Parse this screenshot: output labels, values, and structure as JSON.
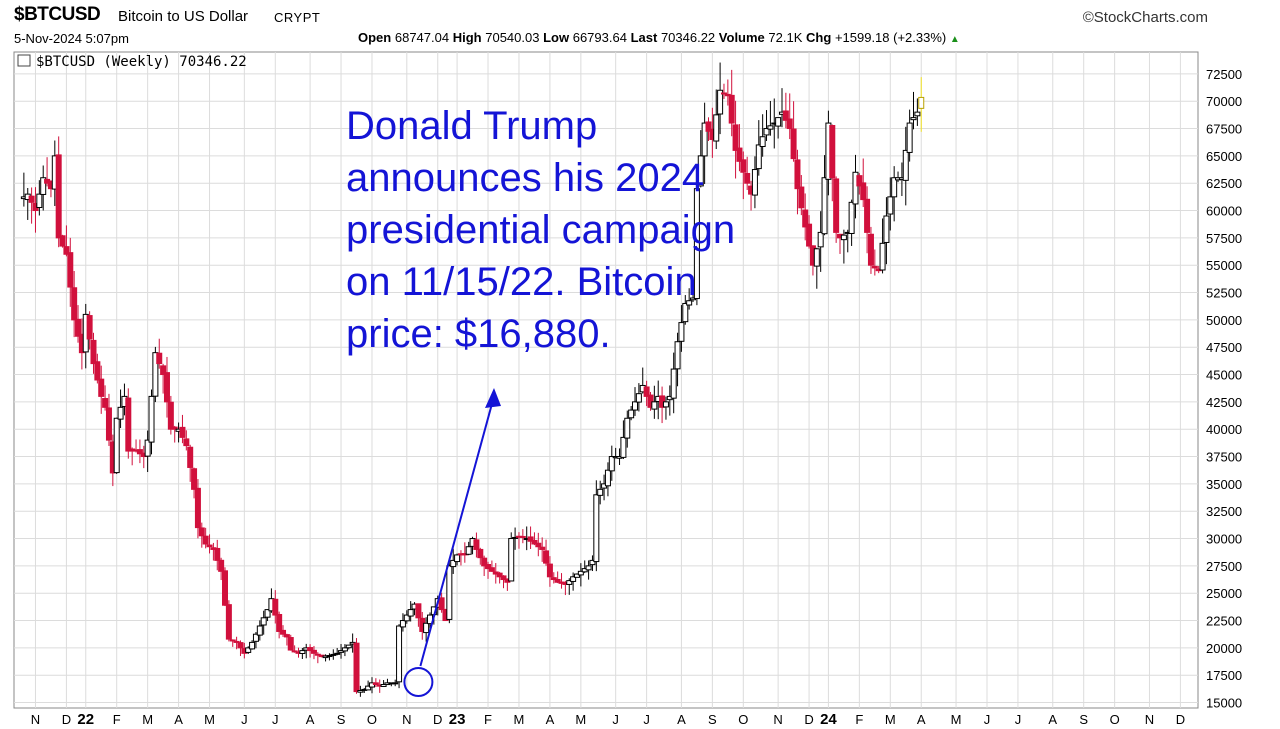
{
  "header": {
    "symbol": "$BTCUSD",
    "description": "Bitcoin to US Dollar",
    "exchange": "CRYPT",
    "brand": "©StockCharts.com",
    "datetime": "5-Nov-2024 5:07pm",
    "quote": {
      "open_label": "Open",
      "open": "68747.04",
      "high_label": "High",
      "high": "70540.03",
      "low_label": "Low",
      "low": "66793.64",
      "last_label": "Last",
      "last": "70346.22",
      "volume_label": "Volume",
      "volume": "72.1K",
      "chg_label": "Chg",
      "chg": "+1599.18 (+2.33%)",
      "chg_arrow": "▲"
    }
  },
  "annotation": {
    "lines": [
      "Donald Trump",
      "announces his 2024",
      "presidential campaign",
      "on 11/15/22. Bitcoin",
      "price: $16,880."
    ],
    "color": "#1414d6"
  },
  "chart_data": {
    "type": "candlestick",
    "title": "$BTCUSD (Weekly) 70346.22",
    "series_label": "$BTCUSD (Weekly) 70346.22",
    "up_color": "#000000",
    "down_color": "#d1103c",
    "last_bar_color": "#f0e020",
    "ylim": [
      14500,
      74500
    ],
    "y_ticks": [
      15000,
      17500,
      20000,
      22500,
      25000,
      27500,
      30000,
      32500,
      35000,
      37500,
      40000,
      42500,
      45000,
      47500,
      50000,
      52500,
      55000,
      57500,
      60000,
      62500,
      65000,
      67500,
      70000,
      72500
    ],
    "x_ticks": [
      {
        "label": "N",
        "bar": 4
      },
      {
        "label": "D",
        "bar": 12
      },
      {
        "label": "22",
        "bar": 17,
        "year": true
      },
      {
        "label": "F",
        "bar": 25
      },
      {
        "label": "M",
        "bar": 33
      },
      {
        "label": "A",
        "bar": 41
      },
      {
        "label": "M",
        "bar": 49
      },
      {
        "label": "J",
        "bar": 58
      },
      {
        "label": "J",
        "bar": 66
      },
      {
        "label": "A",
        "bar": 75
      },
      {
        "label": "S",
        "bar": 83
      },
      {
        "label": "O",
        "bar": 91
      },
      {
        "label": "N",
        "bar": 100
      },
      {
        "label": "D",
        "bar": 108
      },
      {
        "label": "23",
        "bar": 113,
        "year": true
      },
      {
        "label": "F",
        "bar": 121
      },
      {
        "label": "M",
        "bar": 129
      },
      {
        "label": "A",
        "bar": 137
      },
      {
        "label": "M",
        "bar": 145
      },
      {
        "label": "J",
        "bar": 154
      },
      {
        "label": "J",
        "bar": 162
      },
      {
        "label": "A",
        "bar": 171
      },
      {
        "label": "S",
        "bar": 179
      },
      {
        "label": "O",
        "bar": 187
      },
      {
        "label": "N",
        "bar": 196
      },
      {
        "label": "D",
        "bar": 204
      },
      {
        "label": "24",
        "bar": 209,
        "year": true
      },
      {
        "label": "F",
        "bar": 217
      },
      {
        "label": "M",
        "bar": 225
      },
      {
        "label": "A",
        "bar": 233
      },
      {
        "label": "M",
        "bar": 242
      },
      {
        "label": "J",
        "bar": 250
      },
      {
        "label": "J",
        "bar": 258
      },
      {
        "label": "A",
        "bar": 267
      },
      {
        "label": "S",
        "bar": 275
      },
      {
        "label": "O",
        "bar": 283
      },
      {
        "label": "N",
        "bar": 292
      },
      {
        "label": "D",
        "bar": 300
      }
    ],
    "total_bars": 304,
    "highlight": {
      "label": "Trump announcement 11/15/22",
      "bar": 103,
      "price": 16880
    },
    "close_path": [
      [
        0,
        61000
      ],
      [
        2,
        61500
      ],
      [
        4,
        60000
      ],
      [
        6,
        63000
      ],
      [
        8,
        62000
      ],
      [
        9,
        65000
      ],
      [
        10,
        57500
      ],
      [
        12,
        56000
      ],
      [
        14,
        50000
      ],
      [
        16,
        47000
      ],
      [
        17,
        50500
      ],
      [
        19,
        46000
      ],
      [
        21,
        43000
      ],
      [
        22,
        42000
      ],
      [
        24,
        36000
      ],
      [
        25,
        41000
      ],
      [
        27,
        43000
      ],
      [
        28,
        38000
      ],
      [
        30,
        38000
      ],
      [
        32,
        37500
      ],
      [
        33,
        39000
      ],
      [
        34,
        43000
      ],
      [
        35,
        47000
      ],
      [
        37,
        45000
      ],
      [
        39,
        40000
      ],
      [
        41,
        40000
      ],
      [
        43,
        38500
      ],
      [
        45,
        34500
      ],
      [
        46,
        31000
      ],
      [
        48,
        29500
      ],
      [
        50,
        29000
      ],
      [
        52,
        27000
      ],
      [
        54,
        20800
      ],
      [
        56,
        20500
      ],
      [
        58,
        19500
      ],
      [
        60,
        20500
      ],
      [
        62,
        22000
      ],
      [
        64,
        23500
      ],
      [
        65,
        24500
      ],
      [
        67,
        21500
      ],
      [
        69,
        21000
      ],
      [
        70,
        19800
      ],
      [
        72,
        19500
      ],
      [
        74,
        20000
      ],
      [
        76,
        19500
      ],
      [
        78,
        19200
      ],
      [
        80,
        19300
      ],
      [
        82,
        19500
      ],
      [
        84,
        20000
      ],
      [
        86,
        20500
      ],
      [
        87,
        16000
      ],
      [
        89,
        16200
      ],
      [
        91,
        16800
      ],
      [
        93,
        16500
      ],
      [
        95,
        16800
      ],
      [
        97,
        16800
      ],
      [
        98,
        22000
      ],
      [
        100,
        23000
      ],
      [
        102,
        24000
      ],
      [
        104,
        21500
      ],
      [
        106,
        23000
      ],
      [
        108,
        24500
      ],
      [
        110,
        22500
      ],
      [
        111,
        27500
      ],
      [
        113,
        28500
      ],
      [
        115,
        28500
      ],
      [
        117,
        30000
      ],
      [
        118,
        29000
      ],
      [
        120,
        27500
      ],
      [
        122,
        27000
      ],
      [
        124,
        26500
      ],
      [
        126,
        26000
      ],
      [
        127,
        30000
      ],
      [
        129,
        30200
      ],
      [
        131,
        30000
      ],
      [
        133,
        29500
      ],
      [
        135,
        29000
      ],
      [
        137,
        26500
      ],
      [
        139,
        26000
      ],
      [
        141,
        25800
      ],
      [
        143,
        26500
      ],
      [
        145,
        27000
      ],
      [
        147,
        27500
      ],
      [
        148,
        28000
      ],
      [
        149,
        34000
      ],
      [
        151,
        35000
      ],
      [
        153,
        37500
      ],
      [
        155,
        37500
      ],
      [
        157,
        41000
      ],
      [
        159,
        42500
      ],
      [
        161,
        44000
      ],
      [
        163,
        42000
      ],
      [
        165,
        43000
      ],
      [
        166,
        42000
      ],
      [
        168,
        43000
      ],
      [
        170,
        48000
      ],
      [
        172,
        51500
      ],
      [
        174,
        52000
      ],
      [
        175,
        62000
      ],
      [
        177,
        68000
      ],
      [
        179,
        66500
      ],
      [
        181,
        71000
      ],
      [
        183,
        70500
      ],
      [
        185,
        65500
      ],
      [
        187,
        63500
      ],
      [
        189,
        61500
      ],
      [
        191,
        66000
      ],
      [
        193,
        67500
      ],
      [
        195,
        68000
      ],
      [
        197,
        69000
      ],
      [
        199,
        67500
      ],
      [
        201,
        62000
      ],
      [
        203,
        58500
      ],
      [
        205,
        55000
      ],
      [
        207,
        58000
      ],
      [
        209,
        68000
      ],
      [
        211,
        58000
      ],
      [
        212,
        57500
      ],
      [
        214,
        58000
      ],
      [
        216,
        63500
      ],
      [
        218,
        61000
      ],
      [
        220,
        55000
      ],
      [
        222,
        54500
      ],
      [
        224,
        59500
      ],
      [
        226,
        63000
      ],
      [
        228,
        63000
      ],
      [
        230,
        68000
      ],
      [
        232,
        69000
      ],
      [
        233,
        70346
      ]
    ]
  }
}
